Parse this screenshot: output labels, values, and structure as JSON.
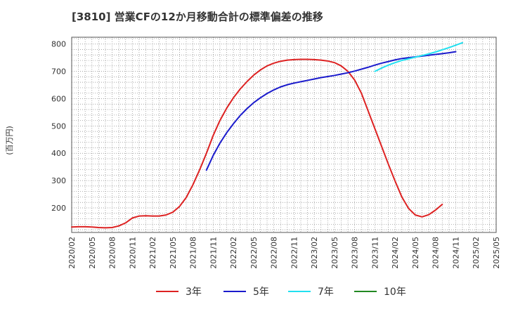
{
  "chart_data": {
    "type": "line",
    "title": "[3810]  営業CFの12か月移動合計の標準偏差の推移",
    "ylabel": "(百万円)",
    "xlabel": "",
    "ylim": [
      110,
      825
    ],
    "yticks": [
      200,
      300,
      400,
      500,
      600,
      700,
      800
    ],
    "xlim": [
      "2020-02",
      "2025-05"
    ],
    "xticks": [
      "2020/02",
      "2020/05",
      "2020/08",
      "2020/11",
      "2021/02",
      "2021/05",
      "2021/08",
      "2021/11",
      "2022/02",
      "2022/05",
      "2022/08",
      "2022/11",
      "2023/02",
      "2023/05",
      "2023/08",
      "2023/11",
      "2024/02",
      "2024/05",
      "2024/08",
      "2024/11",
      "2025/02",
      "2025/05"
    ],
    "grid": true,
    "legend_position": "bottom",
    "series": [
      {
        "name": "3年",
        "color": "#dd2222",
        "points": [
          [
            "2020-02",
            130
          ],
          [
            "2020-03",
            131
          ],
          [
            "2020-04",
            131
          ],
          [
            "2020-05",
            130
          ],
          [
            "2020-06",
            128
          ],
          [
            "2020-07",
            127
          ],
          [
            "2020-08",
            128
          ],
          [
            "2020-09",
            134
          ],
          [
            "2020-10",
            145
          ],
          [
            "2020-11",
            163
          ],
          [
            "2020-12",
            170
          ],
          [
            "2021-01",
            171
          ],
          [
            "2021-02",
            170
          ],
          [
            "2021-03",
            170
          ],
          [
            "2021-04",
            174
          ],
          [
            "2021-05",
            184
          ],
          [
            "2021-06",
            205
          ],
          [
            "2021-07",
            238
          ],
          [
            "2021-08",
            285
          ],
          [
            "2021-09",
            340
          ],
          [
            "2021-10",
            400
          ],
          [
            "2021-11",
            465
          ],
          [
            "2021-12",
            520
          ],
          [
            "2022-01",
            565
          ],
          [
            "2022-02",
            603
          ],
          [
            "2022-03",
            635
          ],
          [
            "2022-04",
            662
          ],
          [
            "2022-05",
            686
          ],
          [
            "2022-06",
            705
          ],
          [
            "2022-07",
            720
          ],
          [
            "2022-08",
            730
          ],
          [
            "2022-09",
            737
          ],
          [
            "2022-10",
            741
          ],
          [
            "2022-11",
            743
          ],
          [
            "2022-12",
            744
          ],
          [
            "2023-01",
            744
          ],
          [
            "2023-02",
            743
          ],
          [
            "2023-03",
            741
          ],
          [
            "2023-04",
            738
          ],
          [
            "2023-05",
            732
          ],
          [
            "2023-06",
            720
          ],
          [
            "2023-07",
            700
          ],
          [
            "2023-08",
            668
          ],
          [
            "2023-09",
            620
          ],
          [
            "2023-10",
            555
          ],
          [
            "2023-11",
            490
          ],
          [
            "2023-12",
            425
          ],
          [
            "2024-01",
            360
          ],
          [
            "2024-02",
            298
          ],
          [
            "2024-03",
            240
          ],
          [
            "2024-04",
            198
          ],
          [
            "2024-05",
            174
          ],
          [
            "2024-06",
            167
          ],
          [
            "2024-07",
            175
          ],
          [
            "2024-08",
            192
          ],
          [
            "2024-09",
            213
          ]
        ]
      },
      {
        "name": "5年",
        "color": "#1a1acc",
        "points": [
          [
            "2021-10",
            338
          ],
          [
            "2021-11",
            392
          ],
          [
            "2021-12",
            437
          ],
          [
            "2022-01",
            475
          ],
          [
            "2022-02",
            508
          ],
          [
            "2022-03",
            538
          ],
          [
            "2022-04",
            563
          ],
          [
            "2022-05",
            585
          ],
          [
            "2022-06",
            603
          ],
          [
            "2022-07",
            619
          ],
          [
            "2022-08",
            632
          ],
          [
            "2022-09",
            643
          ],
          [
            "2022-10",
            651
          ],
          [
            "2022-11",
            657
          ],
          [
            "2022-12",
            662
          ],
          [
            "2023-01",
            667
          ],
          [
            "2023-02",
            672
          ],
          [
            "2023-03",
            677
          ],
          [
            "2023-04",
            681
          ],
          [
            "2023-05",
            685
          ],
          [
            "2023-06",
            690
          ],
          [
            "2023-07",
            695
          ],
          [
            "2023-08",
            701
          ],
          [
            "2023-09",
            708
          ],
          [
            "2023-10",
            715
          ],
          [
            "2023-11",
            723
          ],
          [
            "2023-12",
            730
          ],
          [
            "2024-01",
            736
          ],
          [
            "2024-02",
            742
          ],
          [
            "2024-03",
            747
          ],
          [
            "2024-04",
            750
          ],
          [
            "2024-05",
            753
          ],
          [
            "2024-06",
            756
          ],
          [
            "2024-07",
            759
          ],
          [
            "2024-08",
            762
          ],
          [
            "2024-09",
            765
          ],
          [
            "2024-10",
            768
          ],
          [
            "2024-11",
            772
          ]
        ]
      },
      {
        "name": "7年",
        "color": "#22e0f0",
        "points": [
          [
            "2023-11",
            700
          ],
          [
            "2023-12",
            712
          ],
          [
            "2024-01",
            723
          ],
          [
            "2024-02",
            732
          ],
          [
            "2024-03",
            740
          ],
          [
            "2024-04",
            746
          ],
          [
            "2024-05",
            752
          ],
          [
            "2024-06",
            758
          ],
          [
            "2024-07",
            764
          ],
          [
            "2024-08",
            771
          ],
          [
            "2024-09",
            779
          ],
          [
            "2024-10",
            787
          ],
          [
            "2024-11",
            796
          ],
          [
            "2024-12",
            805
          ]
        ]
      },
      {
        "name": "10年",
        "color": "#228822",
        "points": []
      }
    ]
  }
}
